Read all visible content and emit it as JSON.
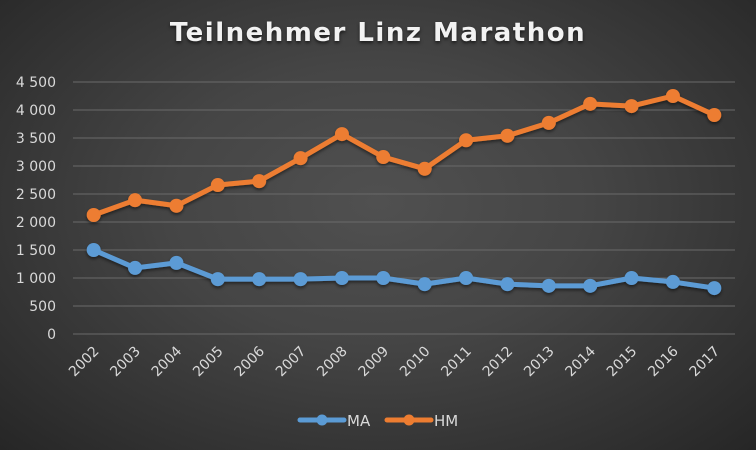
{
  "chart_data": {
    "type": "line",
    "title": "Teilnehmer Linz Marathon",
    "xlabel": "",
    "ylabel": "",
    "categories": [
      "2002",
      "2003",
      "2004",
      "2005",
      "2006",
      "2007",
      "2008",
      "2009",
      "2010",
      "2011",
      "2012",
      "2013",
      "2014",
      "2015",
      "2016",
      "2017"
    ],
    "series": [
      {
        "name": "MA",
        "color": "#5b9bd5",
        "values": [
          1500,
          1180,
          1270,
          980,
          980,
          980,
          1000,
          1000,
          890,
          1000,
          890,
          860,
          860,
          1000,
          930,
          820
        ]
      },
      {
        "name": "HM",
        "color": "#ed7d31",
        "values": [
          2125,
          2390,
          2290,
          2660,
          2730,
          3140,
          3570,
          3160,
          2950,
          3460,
          3540,
          3770,
          4110,
          4070,
          4250,
          3910
        ]
      }
    ],
    "ylim": [
      0,
      4500
    ],
    "yticks": [
      "0",
      "500",
      "1 000",
      "1 500",
      "2 000",
      "2 500",
      "3 000",
      "3 500",
      "4 000",
      "4 500"
    ],
    "ytick_values": [
      0,
      500,
      1000,
      1500,
      2000,
      2500,
      3000,
      3500,
      4000,
      4500
    ],
    "grid": true,
    "legend_position": "bottom"
  }
}
